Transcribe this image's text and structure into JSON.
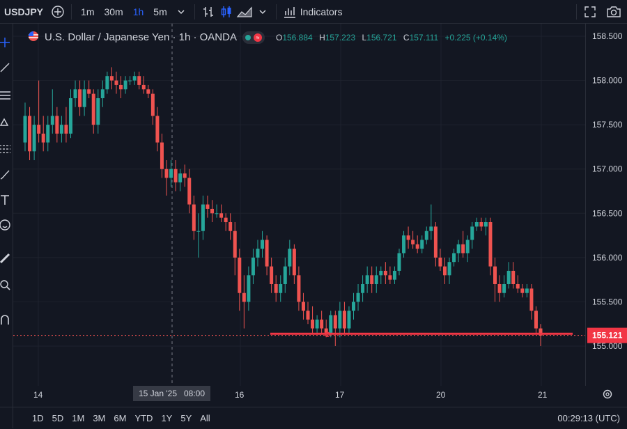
{
  "toolbar": {
    "symbol": "USDJPY",
    "intervals": [
      "1m",
      "30m",
      "1h",
      "5m"
    ],
    "active_interval": "1h",
    "indicators_label": "Indicators"
  },
  "legend": {
    "title": "U.S. Dollar / Japanese Yen · 1h · OANDA",
    "o_label": "O",
    "o_value": "156.884",
    "h_label": "H",
    "h_value": "157.223",
    "l_label": "L",
    "l_value": "156.721",
    "c_label": "C",
    "c_value": "157.111",
    "change": "+0.225 (+0.14%)"
  },
  "price_axis": {
    "ticks": [
      "158.500",
      "158.000",
      "157.500",
      "157.000",
      "156.500",
      "156.000",
      "155.500",
      "155.000"
    ],
    "current_price": "155.121"
  },
  "time_axis": {
    "labels": [
      "14",
      "16",
      "17",
      "20",
      "21"
    ],
    "crosshair_label": "15 Jan '25   08:00"
  },
  "ranges": [
    "1D",
    "5D",
    "1M",
    "3M",
    "6M",
    "YTD",
    "1Y",
    "5Y",
    "All"
  ],
  "clock": "00:29:13 (UTC)",
  "colors": {
    "up": "#26a69a",
    "down": "#ef5350",
    "line": "#f23645",
    "bg": "#131722"
  },
  "chart_data": {
    "type": "candlestick",
    "ylim": [
      154.7,
      158.7
    ],
    "support_level": 155.14,
    "last_price": 155.121,
    "candles": [
      [
        157.3,
        157.75,
        157.2,
        157.6
      ],
      [
        157.6,
        157.7,
        157.1,
        157.2
      ],
      [
        157.2,
        157.6,
        157.1,
        157.5
      ],
      [
        157.5,
        158.0,
        157.3,
        157.4
      ],
      [
        157.4,
        157.6,
        157.2,
        157.3
      ],
      [
        157.3,
        157.6,
        157.2,
        157.5
      ],
      [
        157.5,
        157.9,
        157.4,
        157.6
      ],
      [
        157.6,
        157.7,
        157.3,
        157.4
      ],
      [
        157.4,
        157.6,
        157.3,
        157.5
      ],
      [
        157.5,
        157.7,
        157.3,
        157.4
      ],
      [
        157.4,
        157.9,
        157.35,
        157.8
      ],
      [
        157.8,
        158.0,
        157.7,
        157.9
      ],
      [
        157.9,
        158.0,
        157.6,
        157.7
      ],
      [
        157.7,
        158.0,
        157.6,
        157.9
      ],
      [
        157.9,
        158.0,
        157.8,
        157.85
      ],
      [
        157.85,
        157.9,
        157.4,
        157.5
      ],
      [
        157.5,
        157.9,
        157.4,
        157.8
      ],
      [
        157.8,
        158.0,
        157.7,
        157.9
      ],
      [
        157.9,
        158.1,
        157.85,
        158.05
      ],
      [
        158.05,
        158.15,
        157.9,
        158.0
      ],
      [
        158.0,
        158.1,
        157.85,
        157.95
      ],
      [
        157.95,
        158.05,
        157.8,
        157.9
      ],
      [
        157.9,
        158.05,
        157.85,
        158.0
      ],
      [
        158.0,
        158.05,
        157.95,
        158.0
      ],
      [
        158.0,
        158.1,
        157.95,
        158.05
      ],
      [
        158.05,
        158.1,
        157.9,
        157.95
      ],
      [
        157.95,
        158.05,
        157.85,
        157.9
      ],
      [
        157.9,
        157.95,
        157.8,
        157.85
      ],
      [
        157.85,
        157.9,
        157.5,
        157.6
      ],
      [
        157.6,
        157.7,
        157.2,
        157.3
      ],
      [
        157.3,
        157.4,
        156.9,
        157.0
      ],
      [
        157.0,
        157.1,
        156.7,
        156.9
      ],
      [
        156.9,
        157.1,
        156.8,
        157.0
      ],
      [
        157.0,
        157.1,
        156.75,
        156.85
      ],
      [
        156.85,
        157.0,
        156.75,
        156.95
      ],
      [
        156.95,
        157.05,
        156.8,
        156.9
      ],
      [
        156.9,
        157.0,
        156.5,
        156.6
      ],
      [
        156.6,
        156.7,
        156.2,
        156.3
      ],
      [
        156.3,
        156.5,
        156.0,
        156.3
      ],
      [
        156.3,
        156.7,
        156.2,
        156.6
      ],
      [
        156.6,
        156.7,
        156.45,
        156.55
      ],
      [
        156.55,
        156.65,
        156.4,
        156.5
      ],
      [
        156.5,
        156.6,
        156.45,
        156.5
      ],
      [
        156.5,
        156.6,
        156.4,
        156.45
      ],
      [
        156.45,
        156.5,
        156.3,
        156.4
      ],
      [
        156.4,
        156.5,
        156.2,
        156.3
      ],
      [
        156.3,
        156.4,
        155.8,
        156.0
      ],
      [
        156.0,
        156.1,
        155.4,
        155.6
      ],
      [
        155.6,
        155.8,
        155.2,
        155.5
      ],
      [
        155.5,
        155.9,
        155.4,
        155.8
      ],
      [
        155.8,
        156.1,
        155.7,
        156.0
      ],
      [
        156.0,
        156.2,
        155.9,
        156.1
      ],
      [
        156.1,
        156.3,
        156.0,
        156.2
      ],
      [
        156.2,
        156.25,
        155.8,
        155.9
      ],
      [
        155.9,
        156.0,
        155.6,
        155.7
      ],
      [
        155.7,
        155.8,
        155.5,
        155.6
      ],
      [
        155.6,
        155.8,
        155.5,
        155.7
      ],
      [
        155.7,
        156.0,
        155.6,
        155.9
      ],
      [
        155.9,
        156.2,
        155.8,
        156.1
      ],
      [
        156.1,
        156.15,
        155.7,
        155.8
      ],
      [
        155.8,
        155.9,
        155.4,
        155.5
      ],
      [
        155.5,
        155.6,
        155.3,
        155.4
      ],
      [
        155.4,
        155.5,
        155.25,
        155.3
      ],
      [
        155.3,
        155.45,
        155.15,
        155.2
      ],
      [
        155.2,
        155.35,
        155.15,
        155.3
      ],
      [
        155.3,
        155.4,
        155.15,
        155.2
      ],
      [
        155.2,
        155.3,
        155.1,
        155.15
      ],
      [
        155.15,
        155.4,
        155.1,
        155.35
      ],
      [
        155.35,
        155.4,
        155.0,
        155.2
      ],
      [
        155.2,
        155.5,
        155.1,
        155.4
      ],
      [
        155.4,
        155.5,
        155.15,
        155.2
      ],
      [
        155.2,
        155.45,
        155.15,
        155.4
      ],
      [
        155.4,
        155.6,
        155.3,
        155.5
      ],
      [
        155.5,
        155.7,
        155.4,
        155.6
      ],
      [
        155.6,
        155.8,
        155.5,
        155.7
      ],
      [
        155.7,
        155.9,
        155.6,
        155.8
      ],
      [
        155.8,
        155.9,
        155.6,
        155.7
      ],
      [
        155.7,
        155.9,
        155.6,
        155.8
      ],
      [
        155.8,
        155.9,
        155.7,
        155.85
      ],
      [
        155.85,
        155.95,
        155.7,
        155.8
      ],
      [
        155.8,
        155.9,
        155.7,
        155.75
      ],
      [
        155.75,
        155.9,
        155.7,
        155.85
      ],
      [
        155.85,
        156.1,
        155.8,
        156.05
      ],
      [
        156.05,
        156.3,
        156.0,
        156.25
      ],
      [
        156.25,
        156.35,
        156.1,
        156.2
      ],
      [
        156.2,
        156.3,
        156.1,
        156.15
      ],
      [
        156.15,
        156.25,
        156.05,
        156.1
      ],
      [
        156.1,
        156.25,
        156.05,
        156.2
      ],
      [
        156.2,
        156.35,
        156.15,
        156.3
      ],
      [
        156.3,
        156.6,
        156.2,
        156.35
      ],
      [
        156.35,
        156.4,
        155.9,
        156.0
      ],
      [
        156.0,
        156.1,
        155.85,
        155.9
      ],
      [
        155.9,
        156.0,
        155.7,
        155.8
      ],
      [
        155.8,
        156.0,
        155.7,
        155.95
      ],
      [
        155.95,
        156.1,
        155.9,
        156.05
      ],
      [
        156.05,
        156.2,
        155.95,
        156.15
      ],
      [
        156.15,
        156.3,
        156.0,
        156.05
      ],
      [
        156.05,
        156.25,
        155.95,
        156.2
      ],
      [
        156.2,
        156.4,
        156.1,
        156.35
      ],
      [
        156.35,
        156.45,
        156.3,
        156.4
      ],
      [
        156.4,
        156.45,
        156.3,
        156.35
      ],
      [
        156.35,
        156.45,
        156.25,
        156.4
      ],
      [
        156.4,
        156.45,
        155.8,
        155.9
      ],
      [
        155.9,
        156.0,
        155.5,
        155.7
      ],
      [
        155.7,
        155.8,
        155.5,
        155.6
      ],
      [
        155.6,
        155.8,
        155.55,
        155.7
      ],
      [
        155.7,
        155.95,
        155.65,
        155.85
      ],
      [
        155.85,
        155.95,
        155.65,
        155.7
      ],
      [
        155.7,
        155.8,
        155.6,
        155.65
      ],
      [
        155.65,
        155.7,
        155.55,
        155.6
      ],
      [
        155.6,
        155.7,
        155.55,
        155.65
      ],
      [
        155.65,
        155.7,
        155.3,
        155.4
      ],
      [
        155.4,
        155.45,
        155.15,
        155.2
      ],
      [
        155.2,
        155.25,
        155.0,
        155.12
      ]
    ]
  }
}
